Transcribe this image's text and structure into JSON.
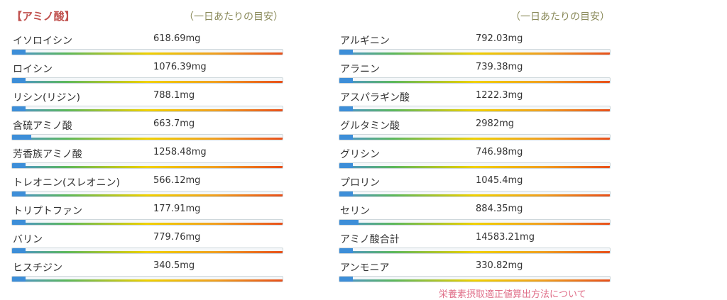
{
  "section_title": "【アミノ酸】",
  "daily_label": "（一日あたりの目安）",
  "left_items": [
    {
      "name": "イソロイシン",
      "value": "618.69mg",
      "fill": 0.05
    },
    {
      "name": "ロイシン",
      "value": "1076.39mg",
      "fill": 0.05
    },
    {
      "name": "リシン(リジン)",
      "value": "788.1mg",
      "fill": 0.05
    },
    {
      "name": "含硫アミノ酸",
      "value": "663.7mg",
      "fill": 0.07
    },
    {
      "name": "芳香族アミノ酸",
      "value": "1258.48mg",
      "fill": 0.05
    },
    {
      "name": "トレオニン(スレオニン)",
      "value": "566.12mg",
      "fill": 0.05
    },
    {
      "name": "トリプトファン",
      "value": "177.91mg",
      "fill": 0.05
    },
    {
      "name": "バリン",
      "value": "779.76mg",
      "fill": 0.05
    },
    {
      "name": "ヒスチジン",
      "value": "340.5mg",
      "fill": 0.05
    }
  ],
  "right_items": [
    {
      "name": "アルギニン",
      "value": "792.03mg",
      "fill": 0.05
    },
    {
      "name": "アラニン",
      "value": "739.38mg",
      "fill": 0.05
    },
    {
      "name": "アスパラギン酸",
      "value": "1222.3mg",
      "fill": 0.05
    },
    {
      "name": "グルタミン酸",
      "value": "2982mg",
      "fill": 0.05
    },
    {
      "name": "グリシン",
      "value": "746.98mg",
      "fill": 0.05
    },
    {
      "name": "プロリン",
      "value": "1045.4mg",
      "fill": 0.05
    },
    {
      "name": "セリン",
      "value": "884.35mg",
      "fill": 0.07
    },
    {
      "name": "アミノ酸合計",
      "value": "14583.21mg",
      "fill": 0.05
    },
    {
      "name": "アンモニア",
      "value": "330.82mg",
      "fill": 0.05
    }
  ],
  "footer_text": "栄養素摂取適正値算出方法について"
}
